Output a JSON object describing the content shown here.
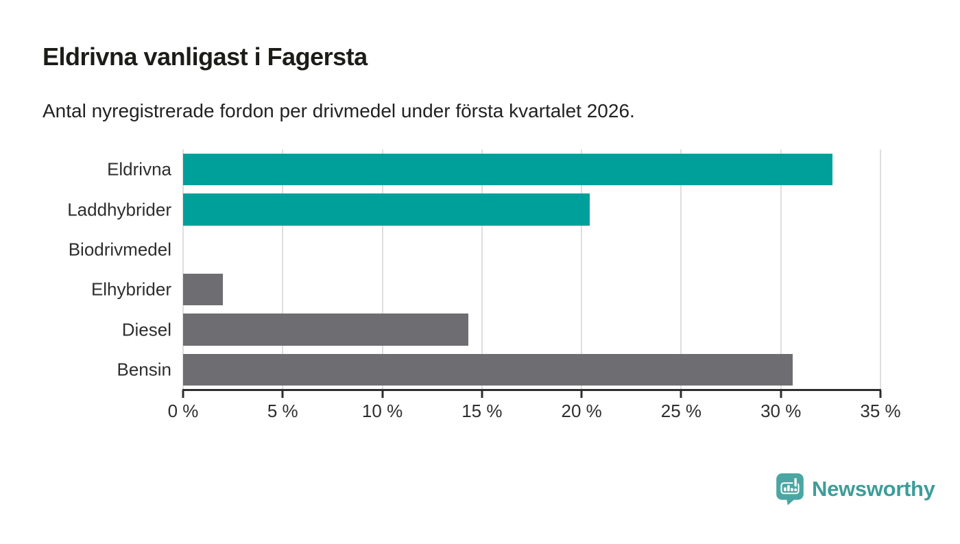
{
  "chart_data": {
    "type": "bar",
    "orientation": "horizontal",
    "title": "Eldrivna vanligast i Fagersta",
    "subtitle": "Antal nyregistrerade fordon per drivmedel under första kvartalet 2026.",
    "categories": [
      "Eldrivna",
      "Laddhybrider",
      "Biodrivmedel",
      "Elhybrider",
      "Diesel",
      "Bensin"
    ],
    "values": [
      32.6,
      20.4,
      0,
      2.0,
      14.3,
      30.6
    ],
    "unit": "%",
    "colors": [
      "#00a09a",
      "#00a09a",
      "#6e6d72",
      "#6e6d72",
      "#6e6d72",
      "#6e6d72"
    ],
    "teal_color": "#00a09a",
    "gray_color": "#6e6d72",
    "xlim": [
      0,
      35
    ],
    "xticks": [
      0,
      5,
      10,
      15,
      20,
      25,
      30,
      35
    ],
    "tick_suffix": " %",
    "grid": "vertical-light",
    "gridline_color": "#dedede",
    "axis_color": "#2d2d2d",
    "legend": false
  },
  "branding": {
    "logo_text": "Newsworthy",
    "logo_icon": "newsworthy-pin-barchart-icon",
    "text_color": "#3d9d9a",
    "badge_color": "#4aa6a3"
  }
}
